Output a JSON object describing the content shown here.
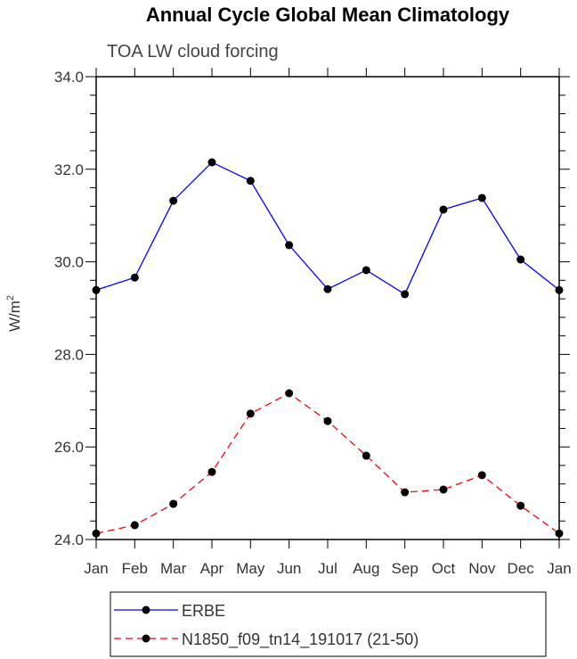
{
  "chart_data": {
    "type": "line",
    "title": "Annual Cycle Global Mean Climatology",
    "subtitle": "TOA LW cloud forcing",
    "xlabel": "",
    "ylabel": "W/m",
    "ylabel_superscript": "2",
    "ylim": [
      24.0,
      34.0
    ],
    "yticks": [
      "24.0",
      "26.0",
      "28.0",
      "30.0",
      "32.0",
      "34.0"
    ],
    "categories": [
      "Jan",
      "Feb",
      "Mar",
      "Apr",
      "May",
      "Jun",
      "Jul",
      "Aug",
      "Sep",
      "Oct",
      "Nov",
      "Dec",
      "Jan"
    ],
    "series": [
      {
        "name": "ERBE",
        "color": "#0000ff",
        "dash": "solid",
        "values": [
          29.39,
          29.66,
          31.32,
          32.15,
          31.75,
          30.36,
          29.41,
          29.82,
          29.3,
          31.13,
          31.38,
          30.05,
          29.39
        ]
      },
      {
        "name": "N1850_f09_tn14_191017 (21-50)",
        "color": "#ff0000",
        "dash": "dashed",
        "values": [
          24.13,
          24.31,
          24.77,
          25.46,
          26.72,
          27.16,
          26.56,
          25.81,
          25.02,
          25.08,
          25.39,
          24.73,
          24.13
        ]
      }
    ],
    "legend_position": "bottom",
    "grid": false
  }
}
